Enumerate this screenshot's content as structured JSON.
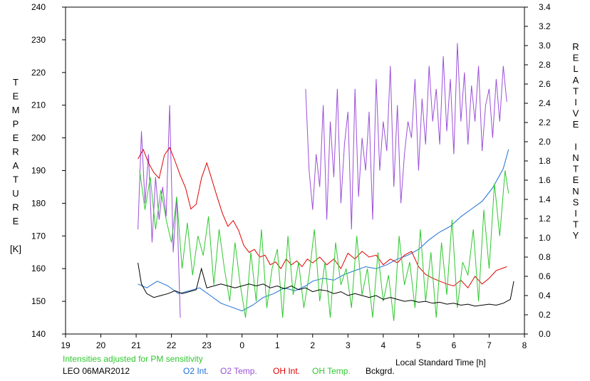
{
  "chart_data": {
    "type": "line",
    "x_unit": "h",
    "x_ticks": [
      "19",
      "20",
      "21",
      "22",
      "23",
      "0",
      "1",
      "2",
      "3",
      "4",
      "5",
      "6",
      "7",
      "8"
    ],
    "y_left_ticks": [
      "140",
      "150",
      "160",
      "170",
      "180",
      "190",
      "200",
      "210",
      "220",
      "230",
      "240"
    ],
    "y_right_ticks": [
      "0.0",
      "0.2",
      "0.4",
      "0.6",
      "0.8",
      "1.0",
      "1.2",
      "1.4",
      "1.6",
      "1.8",
      "2.0",
      "2.2",
      "2.4",
      "2.6",
      "2.8",
      "3.0",
      "3.2",
      "3.4"
    ],
    "ylim_left": [
      140,
      240
    ],
    "ylim_right": [
      0,
      3.4
    ],
    "xlim": [
      19,
      32
    ],
    "xlabel": "Local Standard Time [h]",
    "ylabel_left": [
      "T",
      "E",
      "M",
      "P",
      "E",
      "R",
      "A",
      "T",
      "U",
      "R",
      "E",
      "",
      "[K]"
    ],
    "ylabel_right": [
      "R",
      "E",
      "L",
      "A",
      "T",
      "I",
      "V",
      "E",
      "",
      "I",
      "N",
      "T",
      "E",
      "N",
      "S",
      "I",
      "T",
      "Y"
    ],
    "note": "Intensities adjusted for PM sensitivity",
    "station": "LEO 06MAR2012",
    "legend": [
      {
        "label": "O2 Int.",
        "color": "#1c6fd6"
      },
      {
        "label": "O2 Temp.",
        "color": "#9b4fd8"
      },
      {
        "label": "OH Int.",
        "color": "#e00000"
      },
      {
        "label": "OH Temp.",
        "color": "#2ec82e"
      },
      {
        "label": "Bckgrd.",
        "color": "#000000"
      }
    ],
    "series": [
      {
        "name": "O2 Int.",
        "axis": "right",
        "color": "#1c6fd6",
        "x": [
          21.05,
          21.3,
          21.6,
          21.9,
          22.2,
          22.5,
          22.8,
          23.1,
          23.4,
          23.7,
          24.0,
          24.3,
          24.6,
          24.9,
          25.2,
          25.5,
          25.8,
          26.0,
          26.3,
          26.6,
          26.9,
          27.2,
          27.5,
          27.8,
          28.1,
          28.4,
          28.7,
          29.0,
          29.3,
          29.6,
          29.9,
          30.2,
          30.5,
          30.8,
          31.1,
          31.4,
          31.55
        ],
        "y": [
          0.52,
          0.48,
          0.55,
          0.5,
          0.42,
          0.45,
          0.48,
          0.4,
          0.32,
          0.28,
          0.24,
          0.3,
          0.38,
          0.42,
          0.48,
          0.45,
          0.5,
          0.55,
          0.58,
          0.56,
          0.62,
          0.66,
          0.7,
          0.68,
          0.72,
          0.78,
          0.82,
          0.88,
          0.98,
          1.06,
          1.12,
          1.22,
          1.3,
          1.38,
          1.52,
          1.72,
          1.92
        ]
      },
      {
        "name": "O2 Temp.",
        "axis": "left",
        "color": "#9b4fd8",
        "gap_after": 21.9,
        "x": [
          21.05,
          21.15,
          21.25,
          21.35,
          21.45,
          21.55,
          21.65,
          21.75,
          21.85,
          21.95,
          22.05,
          22.15,
          22.25,
          25.8,
          25.9,
          26.0,
          26.1,
          26.2,
          26.3,
          26.4,
          26.5,
          26.6,
          26.7,
          26.8,
          26.9,
          27.0,
          27.1,
          27.2,
          27.3,
          27.4,
          27.5,
          27.6,
          27.7,
          27.8,
          27.9,
          28.0,
          28.1,
          28.2,
          28.3,
          28.4,
          28.5,
          28.6,
          28.7,
          28.8,
          28.9,
          29.0,
          29.1,
          29.2,
          29.3,
          29.4,
          29.5,
          29.6,
          29.7,
          29.8,
          29.9,
          30.0,
          30.1,
          30.2,
          30.3,
          30.4,
          30.5,
          30.6,
          30.7,
          30.8,
          30.9,
          31.0,
          31.1,
          31.2,
          31.3,
          31.4,
          31.5
        ],
        "y": [
          172,
          202,
          180,
          195,
          168,
          188,
          175,
          185,
          176,
          210,
          165,
          182,
          145,
          215,
          190,
          178,
          195,
          185,
          210,
          175,
          205,
          188,
          215,
          180,
          198,
          208,
          172,
          215,
          182,
          200,
          190,
          208,
          175,
          218,
          190,
          205,
          196,
          222,
          185,
          210,
          180,
          195,
          205,
          200,
          218,
          190,
          212,
          198,
          222,
          205,
          215,
          198,
          225,
          202,
          218,
          195,
          229,
          205,
          220,
          198,
          216,
          205,
          222,
          196,
          210,
          215,
          200,
          218,
          205,
          222,
          211
        ],
        "segments": [
          13
        ]
      },
      {
        "name": "OH Int.",
        "axis": "right",
        "color": "#e00000",
        "x": [
          21.05,
          21.2,
          21.35,
          21.5,
          21.65,
          21.8,
          21.95,
          22.1,
          22.25,
          22.4,
          22.55,
          22.7,
          22.85,
          23.0,
          23.15,
          23.3,
          23.45,
          23.6,
          23.75,
          23.9,
          24.05,
          24.2,
          24.35,
          24.5,
          24.65,
          24.8,
          24.95,
          25.1,
          25.25,
          25.4,
          25.55,
          25.7,
          25.85,
          26.0,
          26.2,
          26.4,
          26.6,
          26.8,
          27.0,
          27.2,
          27.4,
          27.6,
          27.8,
          28.0,
          28.2,
          28.4,
          28.6,
          28.8,
          29.0,
          29.2,
          29.4,
          29.6,
          29.8,
          30.0,
          30.2,
          30.4,
          30.6,
          30.8,
          31.0,
          31.2,
          31.5
        ],
        "y": [
          1.82,
          1.92,
          1.78,
          1.68,
          1.62,
          1.86,
          1.94,
          1.8,
          1.65,
          1.52,
          1.3,
          1.35,
          1.62,
          1.78,
          1.6,
          1.42,
          1.25,
          1.12,
          1.18,
          1.08,
          0.92,
          0.85,
          0.88,
          0.8,
          0.82,
          0.72,
          0.75,
          0.68,
          0.78,
          0.72,
          0.76,
          0.7,
          0.78,
          0.74,
          0.8,
          0.72,
          0.78,
          0.68,
          0.84,
          0.78,
          0.86,
          0.8,
          0.82,
          0.72,
          0.78,
          0.74,
          0.82,
          0.86,
          0.7,
          0.62,
          0.58,
          0.55,
          0.52,
          0.5,
          0.56,
          0.48,
          0.6,
          0.52,
          0.58,
          0.66,
          0.7
        ]
      },
      {
        "name": "OH Temp.",
        "axis": "left",
        "color": "#2ec82e",
        "x": [
          21.1,
          21.25,
          21.4,
          21.55,
          21.7,
          21.85,
          22.0,
          22.15,
          22.3,
          22.45,
          22.6,
          22.75,
          22.9,
          23.05,
          23.2,
          23.35,
          23.5,
          23.65,
          23.8,
          23.95,
          24.1,
          24.25,
          24.4,
          24.55,
          24.7,
          24.85,
          25.0,
          25.15,
          25.3,
          25.45,
          25.6,
          25.75,
          25.9,
          26.05,
          26.2,
          26.35,
          26.5,
          26.65,
          26.8,
          26.95,
          27.1,
          27.25,
          27.4,
          27.55,
          27.7,
          27.85,
          28.0,
          28.15,
          28.3,
          28.45,
          28.6,
          28.75,
          28.9,
          29.05,
          29.2,
          29.35,
          29.5,
          29.65,
          29.8,
          29.95,
          30.1,
          30.25,
          30.4,
          30.55,
          30.7,
          30.85,
          31.0,
          31.15,
          31.3,
          31.45,
          31.55
        ],
        "y": [
          190,
          178,
          188,
          172,
          184,
          175,
          168,
          182,
          160,
          174,
          158,
          170,
          164,
          176,
          155,
          172,
          160,
          150,
          168,
          155,
          145,
          165,
          150,
          172,
          148,
          160,
          166,
          145,
          170,
          152,
          162,
          148,
          158,
          172,
          150,
          162,
          145,
          168,
          155,
          160,
          148,
          170,
          152,
          160,
          145,
          165,
          150,
          158,
          144,
          170,
          155,
          162,
          148,
          172,
          150,
          165,
          145,
          168,
          152,
          175,
          148,
          162,
          158,
          172,
          150,
          178,
          160,
          186,
          170,
          190,
          183
        ]
      },
      {
        "name": "Bckgrd.",
        "axis": "right",
        "color": "#000000",
        "x": [
          21.05,
          21.15,
          21.3,
          21.5,
          21.7,
          21.9,
          22.1,
          22.3,
          22.5,
          22.7,
          22.85,
          23.0,
          23.2,
          23.4,
          23.6,
          23.8,
          24.0,
          24.2,
          24.4,
          24.6,
          24.8,
          25.0,
          25.2,
          25.4,
          25.6,
          25.8,
          26.0,
          26.2,
          26.4,
          26.6,
          26.8,
          27.0,
          27.2,
          27.4,
          27.6,
          27.8,
          28.0,
          28.2,
          28.4,
          28.6,
          28.8,
          29.0,
          29.2,
          29.4,
          29.6,
          29.8,
          30.0,
          30.2,
          30.4,
          30.6,
          30.8,
          31.0,
          31.2,
          31.4,
          31.6,
          31.7
        ],
        "y": [
          0.74,
          0.52,
          0.42,
          0.38,
          0.4,
          0.42,
          0.45,
          0.42,
          0.44,
          0.46,
          0.68,
          0.48,
          0.5,
          0.52,
          0.5,
          0.48,
          0.5,
          0.52,
          0.5,
          0.52,
          0.48,
          0.5,
          0.47,
          0.5,
          0.46,
          0.48,
          0.44,
          0.46,
          0.45,
          0.42,
          0.44,
          0.4,
          0.42,
          0.4,
          0.38,
          0.4,
          0.36,
          0.38,
          0.36,
          0.34,
          0.35,
          0.33,
          0.34,
          0.32,
          0.33,
          0.31,
          0.32,
          0.3,
          0.31,
          0.29,
          0.3,
          0.31,
          0.3,
          0.32,
          0.36,
          0.55
        ]
      }
    ]
  }
}
